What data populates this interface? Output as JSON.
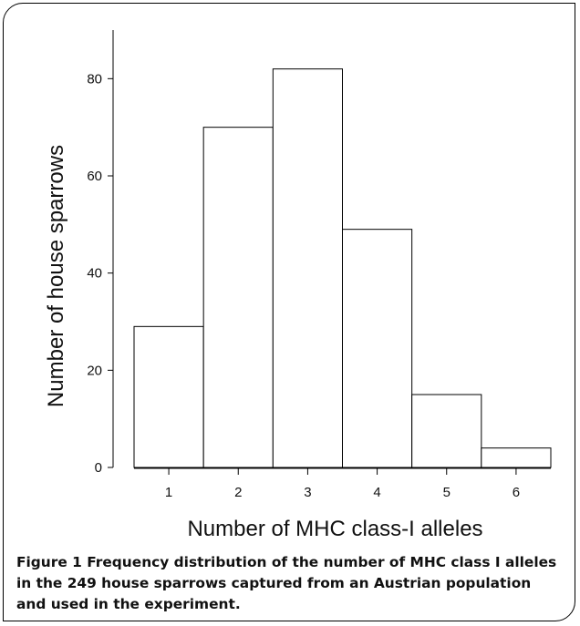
{
  "chart_data": {
    "type": "bar",
    "categories": [
      "1",
      "2",
      "3",
      "4",
      "5",
      "6"
    ],
    "values": [
      29,
      70,
      82,
      49,
      15,
      4
    ],
    "xlabel": "Number of MHC class-I alleles",
    "ylabel": "Number of house sparrows",
    "ylim": [
      0,
      90
    ],
    "yticks": [
      0,
      20,
      40,
      60,
      80
    ],
    "grid": false,
    "bar_fill": "#ffffff",
    "bar_stroke": "#000000"
  },
  "caption": {
    "label": "Figure 1",
    "text": "Frequency distribution of the number of MHC class I alleles in the 249 house sparrows captured from an Austrian population and used in the experiment."
  }
}
